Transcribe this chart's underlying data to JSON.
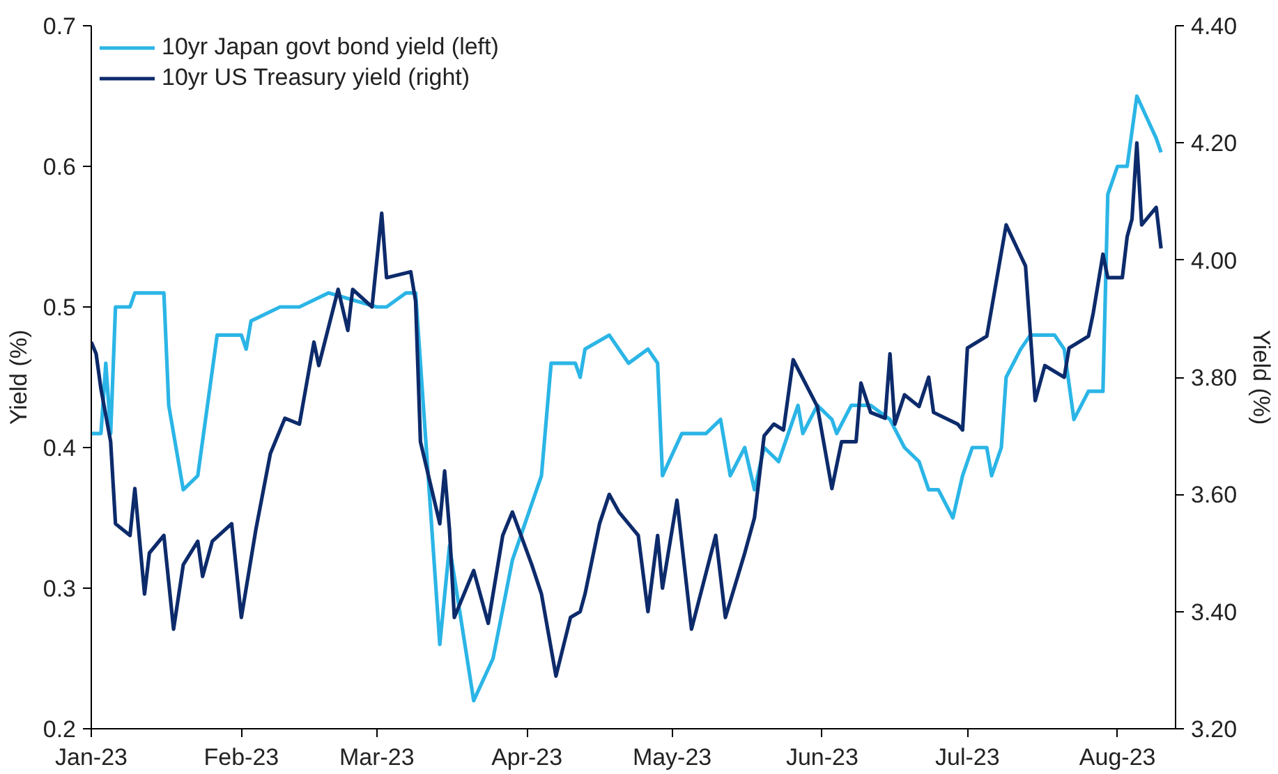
{
  "chart_data": {
    "type": "line",
    "ylabel": "Yield (%)",
    "y2label": "Yield (%)",
    "xlim": [
      "2023-01-01",
      "2023-08-13"
    ],
    "xticks": [
      {
        "value": "2023-01-01",
        "label": "Jan-23"
      },
      {
        "value": "2023-02-01",
        "label": "Feb-23"
      },
      {
        "value": "2023-03-01",
        "label": "Mar-23"
      },
      {
        "value": "2023-04-01",
        "label": "Apr-23"
      },
      {
        "value": "2023-05-01",
        "label": "May-23"
      },
      {
        "value": "2023-06-01",
        "label": "Jun-23"
      },
      {
        "value": "2023-07-01",
        "label": "Jul-23"
      },
      {
        "value": "2023-08-01",
        "label": "Aug-23"
      }
    ],
    "ylim": [
      0.2,
      0.7
    ],
    "yticks": [
      0.2,
      0.3,
      0.4,
      0.5,
      0.6,
      0.7
    ],
    "y2lim": [
      3.2,
      4.4
    ],
    "y2ticks": [
      {
        "value": 3.2,
        "label": "3.20"
      },
      {
        "value": 3.4,
        "label": "3.40"
      },
      {
        "value": 3.6,
        "label": "3.60"
      },
      {
        "value": 3.8,
        "label": "3.80"
      },
      {
        "value": 4.0,
        "label": "4.00"
      },
      {
        "value": 4.2,
        "label": "4.20"
      },
      {
        "value": 4.4,
        "label": "4.40"
      }
    ],
    "grid": false,
    "legend": "top left",
    "marker": "none",
    "line_style": "solid",
    "series": [
      {
        "name": "10yr Japan govt bond yield (left)",
        "color": "#2bb5e6",
        "x": [
          "2023-01-01",
          "2023-01-03",
          "2023-01-04",
          "2023-01-05",
          "2023-01-06",
          "2023-01-09",
          "2023-01-10",
          "2023-01-13",
          "2023-01-16",
          "2023-01-17",
          "2023-01-20",
          "2023-01-23",
          "2023-01-27",
          "2023-02-01",
          "2023-02-02",
          "2023-02-03",
          "2023-02-09",
          "2023-02-13",
          "2023-02-19",
          "2023-03-01",
          "2023-03-03",
          "2023-03-07",
          "2023-03-09",
          "2023-03-11",
          "2023-03-14",
          "2023-03-16",
          "2023-03-21",
          "2023-03-25",
          "2023-03-29",
          "2023-04-04",
          "2023-04-06",
          "2023-04-11",
          "2023-04-12",
          "2023-04-13",
          "2023-04-18",
          "2023-04-22",
          "2023-04-26",
          "2023-04-28",
          "2023-04-29",
          "2023-05-03",
          "2023-05-08",
          "2023-05-11",
          "2023-05-13",
          "2023-05-16",
          "2023-05-18",
          "2023-05-20",
          "2023-05-23",
          "2023-05-27",
          "2023-05-28",
          "2023-05-31",
          "2023-06-03",
          "2023-06-04",
          "2023-06-07",
          "2023-06-11",
          "2023-06-15",
          "2023-06-18",
          "2023-06-21",
          "2023-06-23",
          "2023-06-25",
          "2023-06-28",
          "2023-06-30",
          "2023-07-02",
          "2023-07-05",
          "2023-07-06",
          "2023-07-08",
          "2023-07-09",
          "2023-07-12",
          "2023-07-14",
          "2023-07-19",
          "2023-07-21",
          "2023-07-23",
          "2023-07-26",
          "2023-07-29",
          "2023-07-30",
          "2023-08-01",
          "2023-08-03",
          "2023-08-05",
          "2023-08-09",
          "2023-08-10"
        ],
        "values": [
          0.41,
          0.41,
          0.46,
          0.41,
          0.5,
          0.5,
          0.51,
          0.51,
          0.51,
          0.43,
          0.37,
          0.38,
          0.48,
          0.48,
          0.47,
          0.49,
          0.5,
          0.5,
          0.51,
          0.5,
          0.5,
          0.51,
          0.51,
          0.41,
          0.26,
          0.33,
          0.22,
          0.25,
          0.32,
          0.38,
          0.46,
          0.46,
          0.45,
          0.47,
          0.48,
          0.46,
          0.47,
          0.46,
          0.38,
          0.41,
          0.41,
          0.42,
          0.38,
          0.4,
          0.37,
          0.4,
          0.39,
          0.43,
          0.41,
          0.43,
          0.42,
          0.41,
          0.43,
          0.43,
          0.42,
          0.4,
          0.39,
          0.37,
          0.37,
          0.35,
          0.38,
          0.4,
          0.4,
          0.38,
          0.4,
          0.45,
          0.47,
          0.48,
          0.48,
          0.47,
          0.42,
          0.44,
          0.44,
          0.58,
          0.6,
          0.6,
          0.65,
          0.62,
          0.61
        ]
      },
      {
        "name": "10yr US Treasury yield (right)",
        "color": "#0d2b6b",
        "axis": "y2",
        "x": [
          "2023-01-01",
          "2023-01-02",
          "2023-01-03",
          "2023-01-05",
          "2023-01-06",
          "2023-01-09",
          "2023-01-10",
          "2023-01-12",
          "2023-01-13",
          "2023-01-16",
          "2023-01-18",
          "2023-01-20",
          "2023-01-23",
          "2023-01-24",
          "2023-01-26",
          "2023-01-30",
          "2023-02-01",
          "2023-02-04",
          "2023-02-07",
          "2023-02-10",
          "2023-02-13",
          "2023-02-16",
          "2023-02-17",
          "2023-02-21",
          "2023-02-23",
          "2023-02-24",
          "2023-02-28",
          "2023-03-02",
          "2023-03-03",
          "2023-03-08",
          "2023-03-09",
          "2023-03-10",
          "2023-03-14",
          "2023-03-15",
          "2023-03-16",
          "2023-03-17",
          "2023-03-21",
          "2023-03-24",
          "2023-03-27",
          "2023-03-29",
          "2023-04-02",
          "2023-04-04",
          "2023-04-07",
          "2023-04-10",
          "2023-04-12",
          "2023-04-13",
          "2023-04-16",
          "2023-04-18",
          "2023-04-20",
          "2023-04-24",
          "2023-04-26",
          "2023-04-28",
          "2023-04-29",
          "2023-05-02",
          "2023-05-05",
          "2023-05-10",
          "2023-05-12",
          "2023-05-16",
          "2023-05-18",
          "2023-05-20",
          "2023-05-22",
          "2023-05-24",
          "2023-05-26",
          "2023-05-31",
          "2023-06-03",
          "2023-06-05",
          "2023-06-08",
          "2023-06-09",
          "2023-06-11",
          "2023-06-14",
          "2023-06-15",
          "2023-06-16",
          "2023-06-18",
          "2023-06-21",
          "2023-06-23",
          "2023-06-24",
          "2023-06-29",
          "2023-06-30",
          "2023-07-01",
          "2023-07-05",
          "2023-07-09",
          "2023-07-13",
          "2023-07-15",
          "2023-07-17",
          "2023-07-21",
          "2023-07-22",
          "2023-07-26",
          "2023-07-27",
          "2023-07-29",
          "2023-07-30",
          "2023-08-02",
          "2023-08-03",
          "2023-08-04",
          "2023-08-05",
          "2023-08-06",
          "2023-08-09",
          "2023-08-10"
        ],
        "values": [
          3.86,
          3.84,
          3.78,
          3.69,
          3.55,
          3.53,
          3.61,
          3.43,
          3.5,
          3.53,
          3.37,
          3.48,
          3.52,
          3.46,
          3.52,
          3.55,
          3.39,
          3.54,
          3.67,
          3.73,
          3.72,
          3.86,
          3.82,
          3.95,
          3.88,
          3.95,
          3.92,
          4.08,
          3.97,
          3.98,
          3.93,
          3.69,
          3.55,
          3.64,
          3.54,
          3.39,
          3.47,
          3.38,
          3.53,
          3.57,
          3.48,
          3.43,
          3.29,
          3.39,
          3.4,
          3.43,
          3.55,
          3.6,
          3.57,
          3.53,
          3.4,
          3.53,
          3.44,
          3.59,
          3.37,
          3.53,
          3.39,
          3.5,
          3.56,
          3.7,
          3.72,
          3.71,
          3.83,
          3.75,
          3.61,
          3.69,
          3.69,
          3.79,
          3.74,
          3.73,
          3.84,
          3.72,
          3.77,
          3.75,
          3.8,
          3.74,
          3.72,
          3.71,
          3.85,
          3.87,
          4.06,
          3.99,
          3.76,
          3.82,
          3.8,
          3.85,
          3.87,
          3.91,
          4.01,
          3.97,
          3.97,
          4.04,
          4.07,
          4.2,
          4.06,
          4.09,
          4.02
        ]
      }
    ]
  }
}
